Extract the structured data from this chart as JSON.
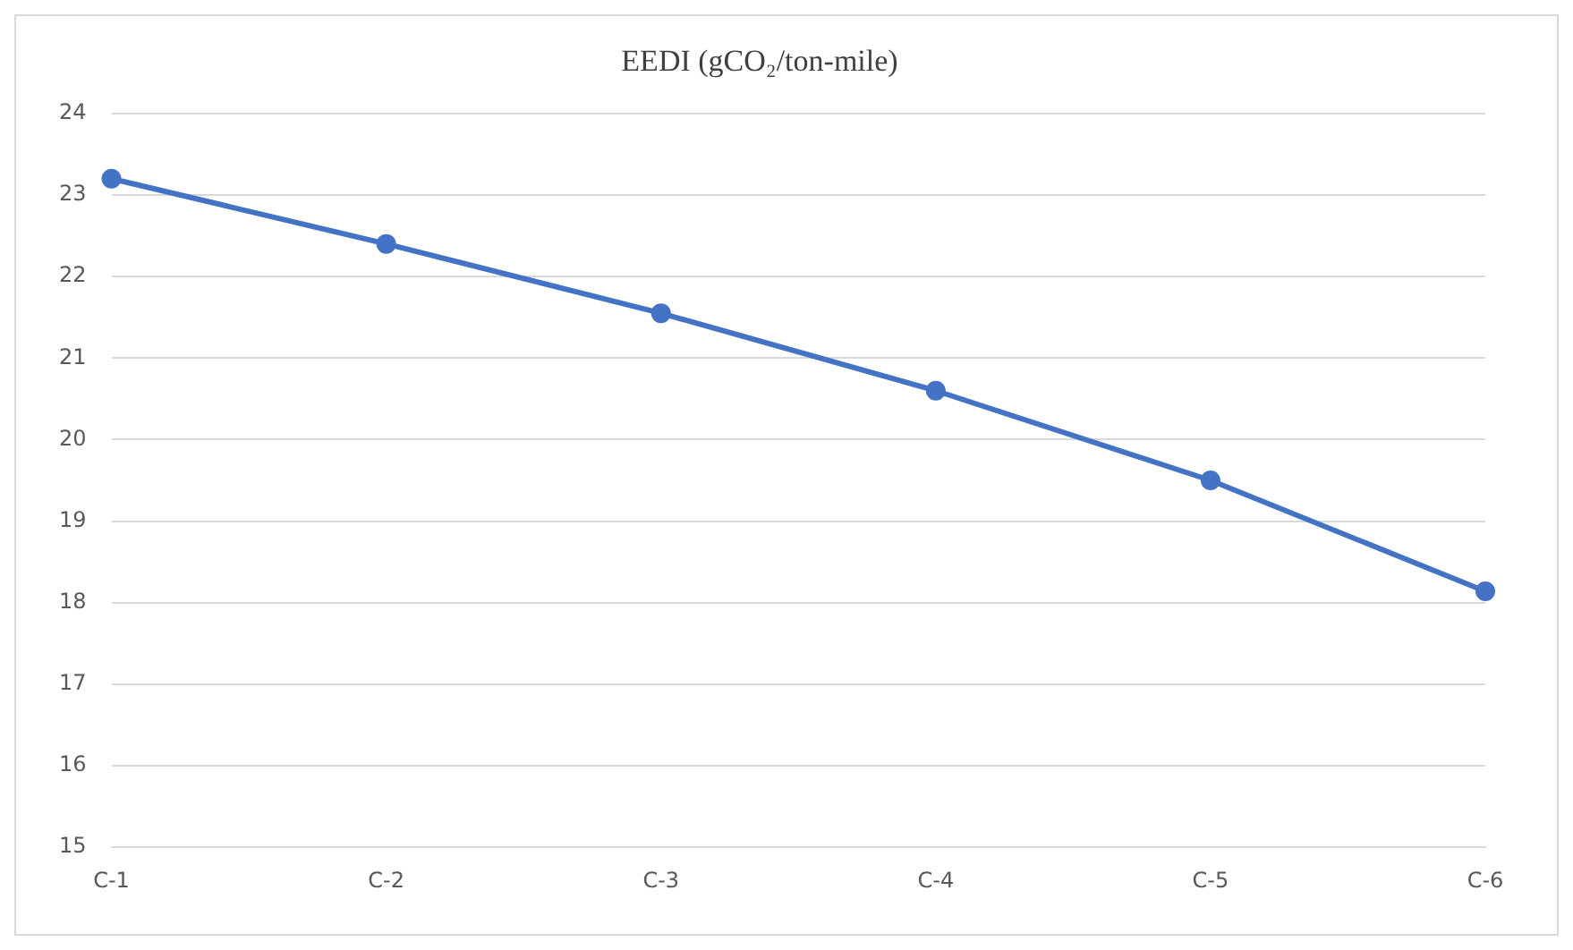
{
  "chart_data": {
    "type": "line",
    "title": "EEDI (gCO₂/ton-mile)",
    "categories": [
      "C-1",
      "C-2",
      "C-3",
      "C-4",
      "C-5",
      "C-6"
    ],
    "series": [
      {
        "color": "#4472c4",
        "values": [
          23.2,
          22.4,
          21.55,
          20.6,
          19.5,
          18.14
        ]
      }
    ],
    "ylim": [
      15,
      24
    ],
    "yticks": [
      15,
      16,
      17,
      18,
      19,
      20,
      21,
      22,
      23,
      24
    ],
    "grid": "y",
    "legend": false,
    "marker": "circle",
    "line_style": "solid"
  }
}
